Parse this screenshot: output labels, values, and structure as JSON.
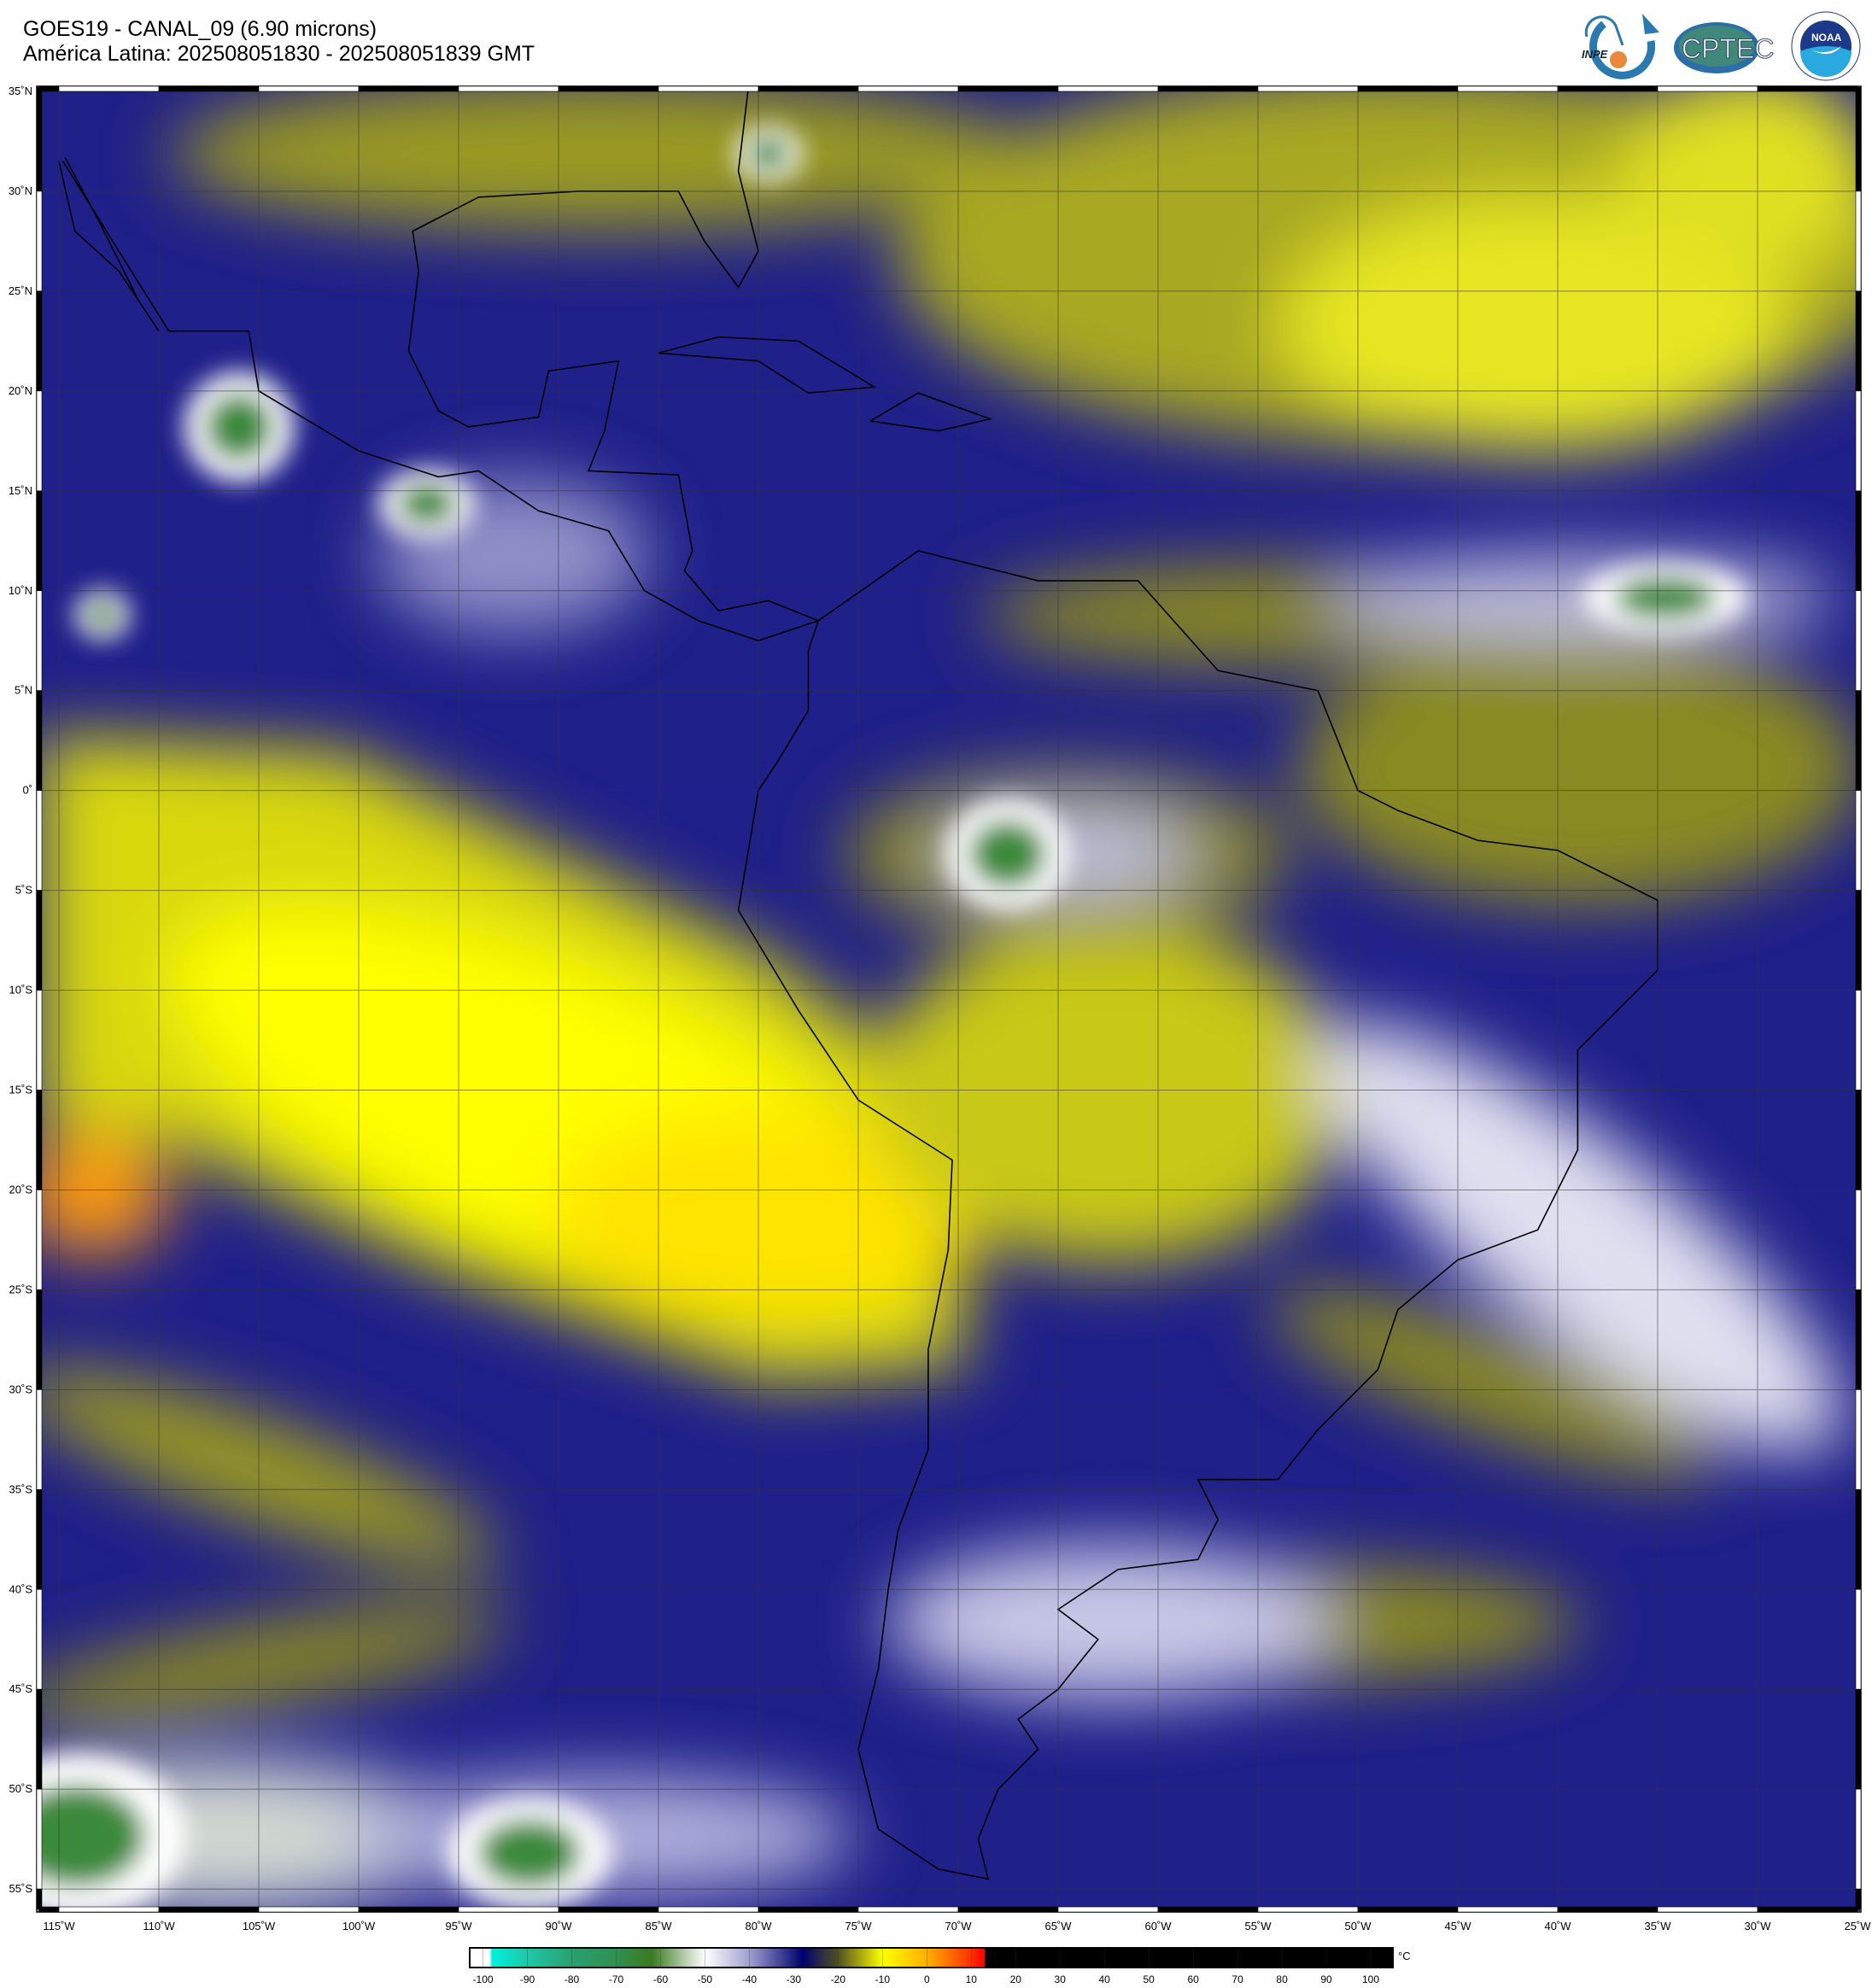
{
  "header": {
    "title_line1": "GOES19 - CANAL_09 (6.90 microns)",
    "title_line2": "América Latina: 202508051830 - 202508051839 GMT"
  },
  "logos": [
    {
      "name": "INPE",
      "icon": "inpe-logo"
    },
    {
      "name": "CPTEC",
      "icon": "cptec-logo"
    },
    {
      "name": "NOAA",
      "icon": "noaa-logo"
    }
  ],
  "map": {
    "lon_range": [
      -116,
      -25
    ],
    "lat_range": [
      -56,
      35.2
    ],
    "grid": true,
    "lat_labels": [
      "35˚N",
      "30˚N",
      "25˚N",
      "20˚N",
      "15˚N",
      "10˚N",
      "5˚N",
      "0˚",
      "5˚S",
      "10˚S",
      "15˚S",
      "20˚S",
      "25˚S",
      "30˚S",
      "35˚S",
      "40˚S",
      "45˚S",
      "50˚S",
      "55˚S"
    ],
    "lat_values": [
      35,
      30,
      25,
      20,
      15,
      10,
      5,
      0,
      -5,
      -10,
      -15,
      -20,
      -25,
      -30,
      -35,
      -40,
      -45,
      -50,
      -55
    ],
    "lon_labels": [
      "115˚W",
      "110˚W",
      "105˚W",
      "100˚W",
      "95˚W",
      "90˚W",
      "85˚W",
      "80˚W",
      "75˚W",
      "70˚W",
      "65˚W",
      "60˚W",
      "55˚W",
      "50˚W",
      "45˚W",
      "40˚W",
      "35˚W",
      "30˚W",
      "25˚W"
    ],
    "lon_values": [
      -115,
      -110,
      -105,
      -100,
      -95,
      -90,
      -85,
      -80,
      -75,
      -70,
      -65,
      -60,
      -55,
      -50,
      -45,
      -40,
      -35,
      -30,
      -25
    ]
  },
  "colorbar": {
    "unit": "°C",
    "range": [
      -103,
      105
    ],
    "tick_labels": [
      "-100",
      "-90",
      "-80",
      "-70",
      "-60",
      "-50",
      "-40",
      "-30",
      "-20",
      "-10",
      "0",
      "10",
      "20",
      "30",
      "40",
      "50",
      "60",
      "70",
      "80",
      "90",
      "100"
    ],
    "tick_values": [
      -100,
      -90,
      -80,
      -70,
      -60,
      -50,
      -40,
      -30,
      -20,
      -10,
      0,
      10,
      20,
      30,
      40,
      50,
      60,
      70,
      80,
      90,
      100
    ],
    "stops": [
      {
        "v": -103,
        "c": "#ffffff"
      },
      {
        "v": -98.5,
        "c": "#ffffff"
      },
      {
        "v": -98,
        "c": "#00f0e0"
      },
      {
        "v": -90,
        "c": "#20c8a8"
      },
      {
        "v": -80,
        "c": "#2aa070"
      },
      {
        "v": -70,
        "c": "#309050"
      },
      {
        "v": -62,
        "c": "#3a7a20"
      },
      {
        "v": -50,
        "c": "#ffffff"
      },
      {
        "v": -40,
        "c": "#a0a0d0"
      },
      {
        "v": -28,
        "c": "#000070"
      },
      {
        "v": -20,
        "c": "#505020"
      },
      {
        "v": -10,
        "c": "#ffff00"
      },
      {
        "v": 0,
        "c": "#ffb000"
      },
      {
        "v": 10,
        "c": "#ff3000"
      },
      {
        "v": 13,
        "c": "#ff0000"
      },
      {
        "v": 13.01,
        "c": "#000000"
      },
      {
        "v": 105,
        "c": "#000000"
      }
    ]
  }
}
